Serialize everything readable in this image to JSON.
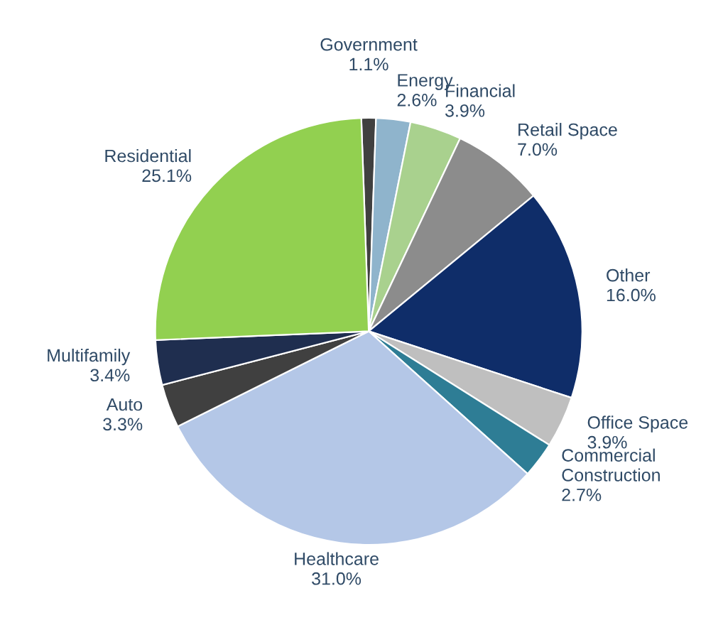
{
  "chart_data": {
    "type": "pie",
    "categories": [
      "Government",
      "Energy",
      "Financial",
      "Retail Space",
      "Other",
      "Office Space",
      "Commercial\nConstruction",
      "Healthcare",
      "Auto",
      "Multifamily",
      "Residential"
    ],
    "values": [
      1.1,
      2.6,
      3.9,
      7.0,
      16.0,
      3.9,
      2.7,
      31.0,
      3.3,
      3.4,
      25.1
    ],
    "value_labels": [
      "1.1%",
      "2.6%",
      "3.9%",
      "7.0%",
      "16.0%",
      "3.9%",
      "2.7%",
      "31.0%",
      "3.3%",
      "3.4%",
      "25.1%"
    ],
    "colors": [
      "#404040",
      "#8fb4cc",
      "#a9d18e",
      "#8c8c8c",
      "#0f2d69",
      "#bfbfbf",
      "#2e7d95",
      "#b4c7e7",
      "#404040",
      "#1f2e4f",
      "#92d050"
    ],
    "legend": false
  }
}
